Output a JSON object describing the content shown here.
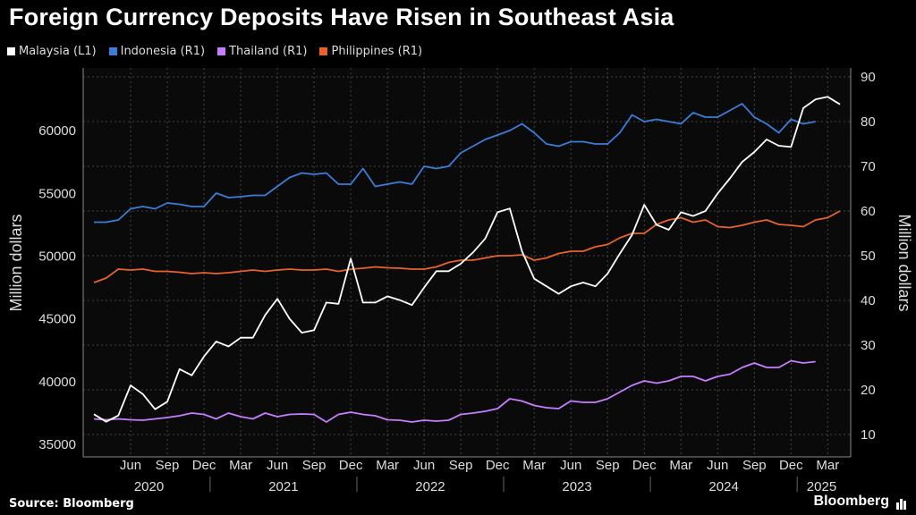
{
  "title": "Foreign Currency Deposits Have Risen in Southeast Asia",
  "source": "Source: Bloomberg",
  "brand": "Bloomberg",
  "chart_data": {
    "type": "line",
    "title": "Foreign Currency Deposits Have Risen in Southeast Asia",
    "left_axis": {
      "label": "Million dollars",
      "range": [
        34000,
        65000
      ],
      "ticks": [
        35000,
        40000,
        45000,
        50000,
        55000,
        60000
      ]
    },
    "right_axis": {
      "label": "Million dollars",
      "range": [
        5,
        92
      ],
      "ticks": [
        10,
        20,
        30,
        40,
        50,
        60,
        70,
        80,
        90
      ]
    },
    "x_start_month": "2020-03",
    "x_tick_labels": [
      "Jun",
      "Sep",
      "Dec",
      "Mar",
      "Jun",
      "Sep",
      "Dec",
      "Mar",
      "Jun",
      "Sep",
      "Dec",
      "Mar",
      "Jun",
      "Sep",
      "Dec",
      "Mar",
      "Jun",
      "Sep",
      "Dec",
      "Mar"
    ],
    "year_labels": [
      "2020",
      "2021",
      "2022",
      "2023",
      "2024",
      "2025"
    ],
    "grid": true,
    "legend_position": "top-left",
    "series": [
      {
        "name": "Malaysia (L1)",
        "axis": "left",
        "color": "#ffffff",
        "values": [
          37400,
          36800,
          37300,
          39700,
          39000,
          37800,
          38400,
          41000,
          40500,
          42000,
          43200,
          42800,
          43500,
          43500,
          45300,
          46600,
          45000,
          43900,
          44100,
          46300,
          46200,
          49800,
          46300,
          46300,
          46800,
          46500,
          46100,
          47500,
          48800,
          48800,
          49400,
          50300,
          51400,
          53500,
          53800,
          50400,
          48200,
          47600,
          47000,
          47600,
          47900,
          47600,
          48600,
          50200,
          51700,
          54100,
          52500,
          52100,
          53500,
          53200,
          53600,
          55000,
          56200,
          57500,
          58300,
          59300,
          58800,
          58700,
          61800,
          62500,
          62700,
          62100
        ]
      },
      {
        "name": "Indonesia (R1)",
        "axis": "right",
        "color": "#3b7dd8",
        "values": [
          57.5,
          57.5,
          58.0,
          60.5,
          61.0,
          60.5,
          61.8,
          61.5,
          61.0,
          61.0,
          64.0,
          63.0,
          63.2,
          63.5,
          63.5,
          65.5,
          67.5,
          68.5,
          68.2,
          68.5,
          66.0,
          66.0,
          69.5,
          65.5,
          66.0,
          66.5,
          66.0,
          70.0,
          69.5,
          70.0,
          73.0,
          74.5,
          76.0,
          77.0,
          78.0,
          79.5,
          77.5,
          75.0,
          74.5,
          75.5,
          75.5,
          75.0,
          75.0,
          77.5,
          81.5,
          80.0,
          80.5,
          80.0,
          79.5,
          82.0,
          81.0,
          81.0,
          82.5,
          84.0,
          81.0,
          79.5,
          77.5,
          80.5,
          79.5,
          80.0
        ]
      },
      {
        "name": "Thailand (R1)",
        "axis": "right",
        "color": "#c77dff",
        "values": [
          13.5,
          13.3,
          13.5,
          13.3,
          13.2,
          13.5,
          13.8,
          14.2,
          14.8,
          14.5,
          13.5,
          14.8,
          14.0,
          13.5,
          14.8,
          14.0,
          14.5,
          14.6,
          14.5,
          12.8,
          14.5,
          15.0,
          14.5,
          14.2,
          13.3,
          13.2,
          12.8,
          13.2,
          13.0,
          13.2,
          14.5,
          14.8,
          15.2,
          15.8,
          18.0,
          17.5,
          16.5,
          16.0,
          15.8,
          17.5,
          17.2,
          17.2,
          18.0,
          19.5,
          21.0,
          22.0,
          21.5,
          22.0,
          23.0,
          23.0,
          22.0,
          23.0,
          23.5,
          25.0,
          26.0,
          25.0,
          25.0,
          26.5,
          26.0,
          26.3
        ]
      },
      {
        "name": "Philippines (R1)",
        "axis": "right",
        "color": "#e8622a",
        "values": [
          44.0,
          45.0,
          47.0,
          46.8,
          47.0,
          46.5,
          46.5,
          46.3,
          46.0,
          46.2,
          46.0,
          46.2,
          46.5,
          46.8,
          46.5,
          46.8,
          47.0,
          46.8,
          46.8,
          47.0,
          46.5,
          47.0,
          47.2,
          47.5,
          47.3,
          47.2,
          47.0,
          47.0,
          47.5,
          48.5,
          49.0,
          49.0,
          49.5,
          50.0,
          50.0,
          50.2,
          49.0,
          49.5,
          50.5,
          51.0,
          51.0,
          52.0,
          52.5,
          54.0,
          55.0,
          55.0,
          57.0,
          58.0,
          58.5,
          57.5,
          58.0,
          56.5,
          56.3,
          56.8,
          57.5,
          58.0,
          57.0,
          56.8,
          56.5,
          58.0,
          58.5,
          60.0
        ]
      }
    ]
  }
}
